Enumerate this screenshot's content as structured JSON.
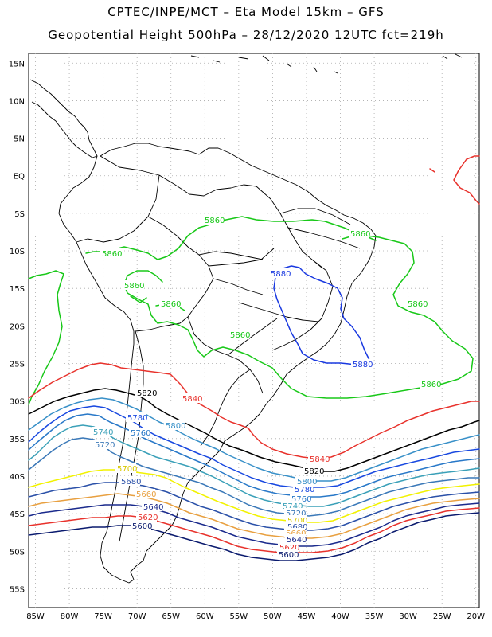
{
  "header": {
    "line1": "CPTEC/INPE/MCT –  Eta Model 15km – GFS",
    "line2": "Geopotential Height 500hPa – 28/12/2020 12UTC fct=219h"
  },
  "axes": {
    "lat_labels": [
      "15N",
      "10N",
      "5N",
      "EQ",
      "5S",
      "10S",
      "15S",
      "20S",
      "25S",
      "30S",
      "35S",
      "40S",
      "45S",
      "50S",
      "55S"
    ],
    "lat_values": [
      15,
      10,
      5,
      0,
      -5,
      -10,
      -15,
      -20,
      -25,
      -30,
      -35,
      -40,
      -45,
      -50,
      -55
    ],
    "lon_labels": [
      "85W",
      "80W",
      "75W",
      "70W",
      "65W",
      "60W",
      "55W",
      "50W",
      "45W",
      "40W",
      "35W",
      "30W",
      "25W",
      "20W"
    ],
    "lon_values": [
      -85,
      -80,
      -75,
      -70,
      -65,
      -60,
      -55,
      -50,
      -45,
      -40,
      -35,
      -30,
      -25,
      -20
    ],
    "lat_range": [
      -57.5,
      16.3
    ],
    "lon_range": [
      -86,
      -19.5
    ],
    "grid": "dotted"
  },
  "contour_levels": [
    {
      "value": 5600,
      "color": "#0a1a6e"
    },
    {
      "value": 5620,
      "color": "#e8322c"
    },
    {
      "value": 5640,
      "color": "#1a2a8c"
    },
    {
      "value": 5660,
      "color": "#e8a040"
    },
    {
      "value": 5680,
      "color": "#2a50a8"
    },
    {
      "value": 5700,
      "color": "#f2f200"
    },
    {
      "value": 5720,
      "color": "#3a78b8"
    },
    {
      "value": 5740,
      "color": "#3aa0b8"
    },
    {
      "value": 5760,
      "color": "#2878c8"
    },
    {
      "value": 5780,
      "color": "#1848e0"
    },
    {
      "value": 5800,
      "color": "#3890c8"
    },
    {
      "value": 5820,
      "color": "#000000"
    },
    {
      "value": 5840,
      "color": "#e8322c"
    },
    {
      "value": 5860,
      "color": "#18c818"
    },
    {
      "value": 5880,
      "color": "#1838e0"
    }
  ],
  "labels": {
    "l5860a": "5860",
    "l5860b": "5860",
    "l5860c": "5860",
    "l5860d": "5860",
    "l5860e": "5860",
    "l5860f": "5860",
    "l5860g": "5860",
    "l5860h": "5860",
    "l5880a": "5880",
    "l5880b": "5880",
    "l5820a": "5820",
    "l5820b": "5820",
    "l5840a": "5840",
    "l5840b": "5840",
    "l5800a": "5800",
    "l5800b": "5800",
    "l5780a": "5780",
    "l5780b": "5780",
    "l5760a": "5760",
    "l5760b": "5760",
    "l5740a": "5740",
    "l5740b": "5740",
    "l5720a": "5720",
    "l5720b": "5720",
    "l5700a": "5700",
    "l5700b": "5700",
    "l5680a": "5680",
    "l5680b": "5680",
    "l5660a": "5660",
    "l5660b": "5660",
    "l5640a": "5640",
    "l5640b": "5640",
    "l5620a": "5620",
    "l5620b": "5620",
    "l5600a": "5600",
    "l5600b": "5600"
  }
}
